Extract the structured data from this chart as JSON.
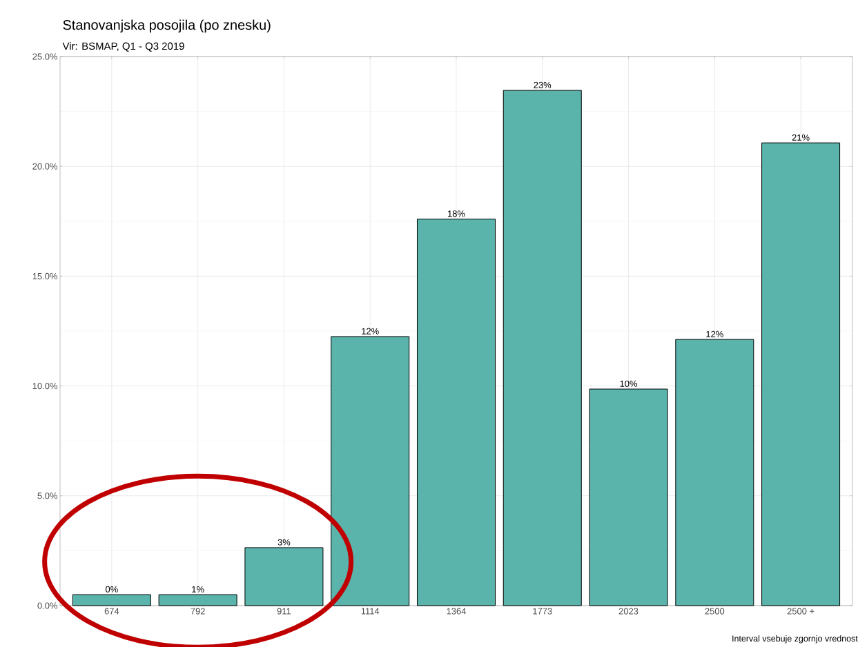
{
  "chart_data": {
    "type": "bar",
    "title": "Stanovanjska posojila (po znesku)",
    "subtitle": "Vir: BSMAP, Q1 - Q3 2019",
    "categories": [
      "674",
      "792",
      "911",
      "1114",
      "1364",
      "1773",
      "2023",
      "2500",
      "2500 +"
    ],
    "values": [
      0.5,
      0.5,
      2.64,
      12.25,
      17.6,
      23.46,
      9.86,
      12.12,
      21.07
    ],
    "value_labels": [
      "0%",
      "1%",
      "3%",
      "12%",
      "18%",
      "23%",
      "10%",
      "12%",
      "21%"
    ],
    "color": "#5ab4ac",
    "ylim": [
      0,
      25
    ],
    "yticks": [
      {
        "value": 0,
        "label": "0.0%"
      },
      {
        "value": 5,
        "label": "5.0%"
      },
      {
        "value": 10,
        "label": "10.0%"
      },
      {
        "value": 15,
        "label": "15.0%"
      },
      {
        "value": 20,
        "label": "20.0%"
      },
      {
        "value": 25,
        "label": "25.0%"
      }
    ],
    "grid": true,
    "annotations": [
      "Interval vsebuje zgornjo vrednost"
    ]
  }
}
